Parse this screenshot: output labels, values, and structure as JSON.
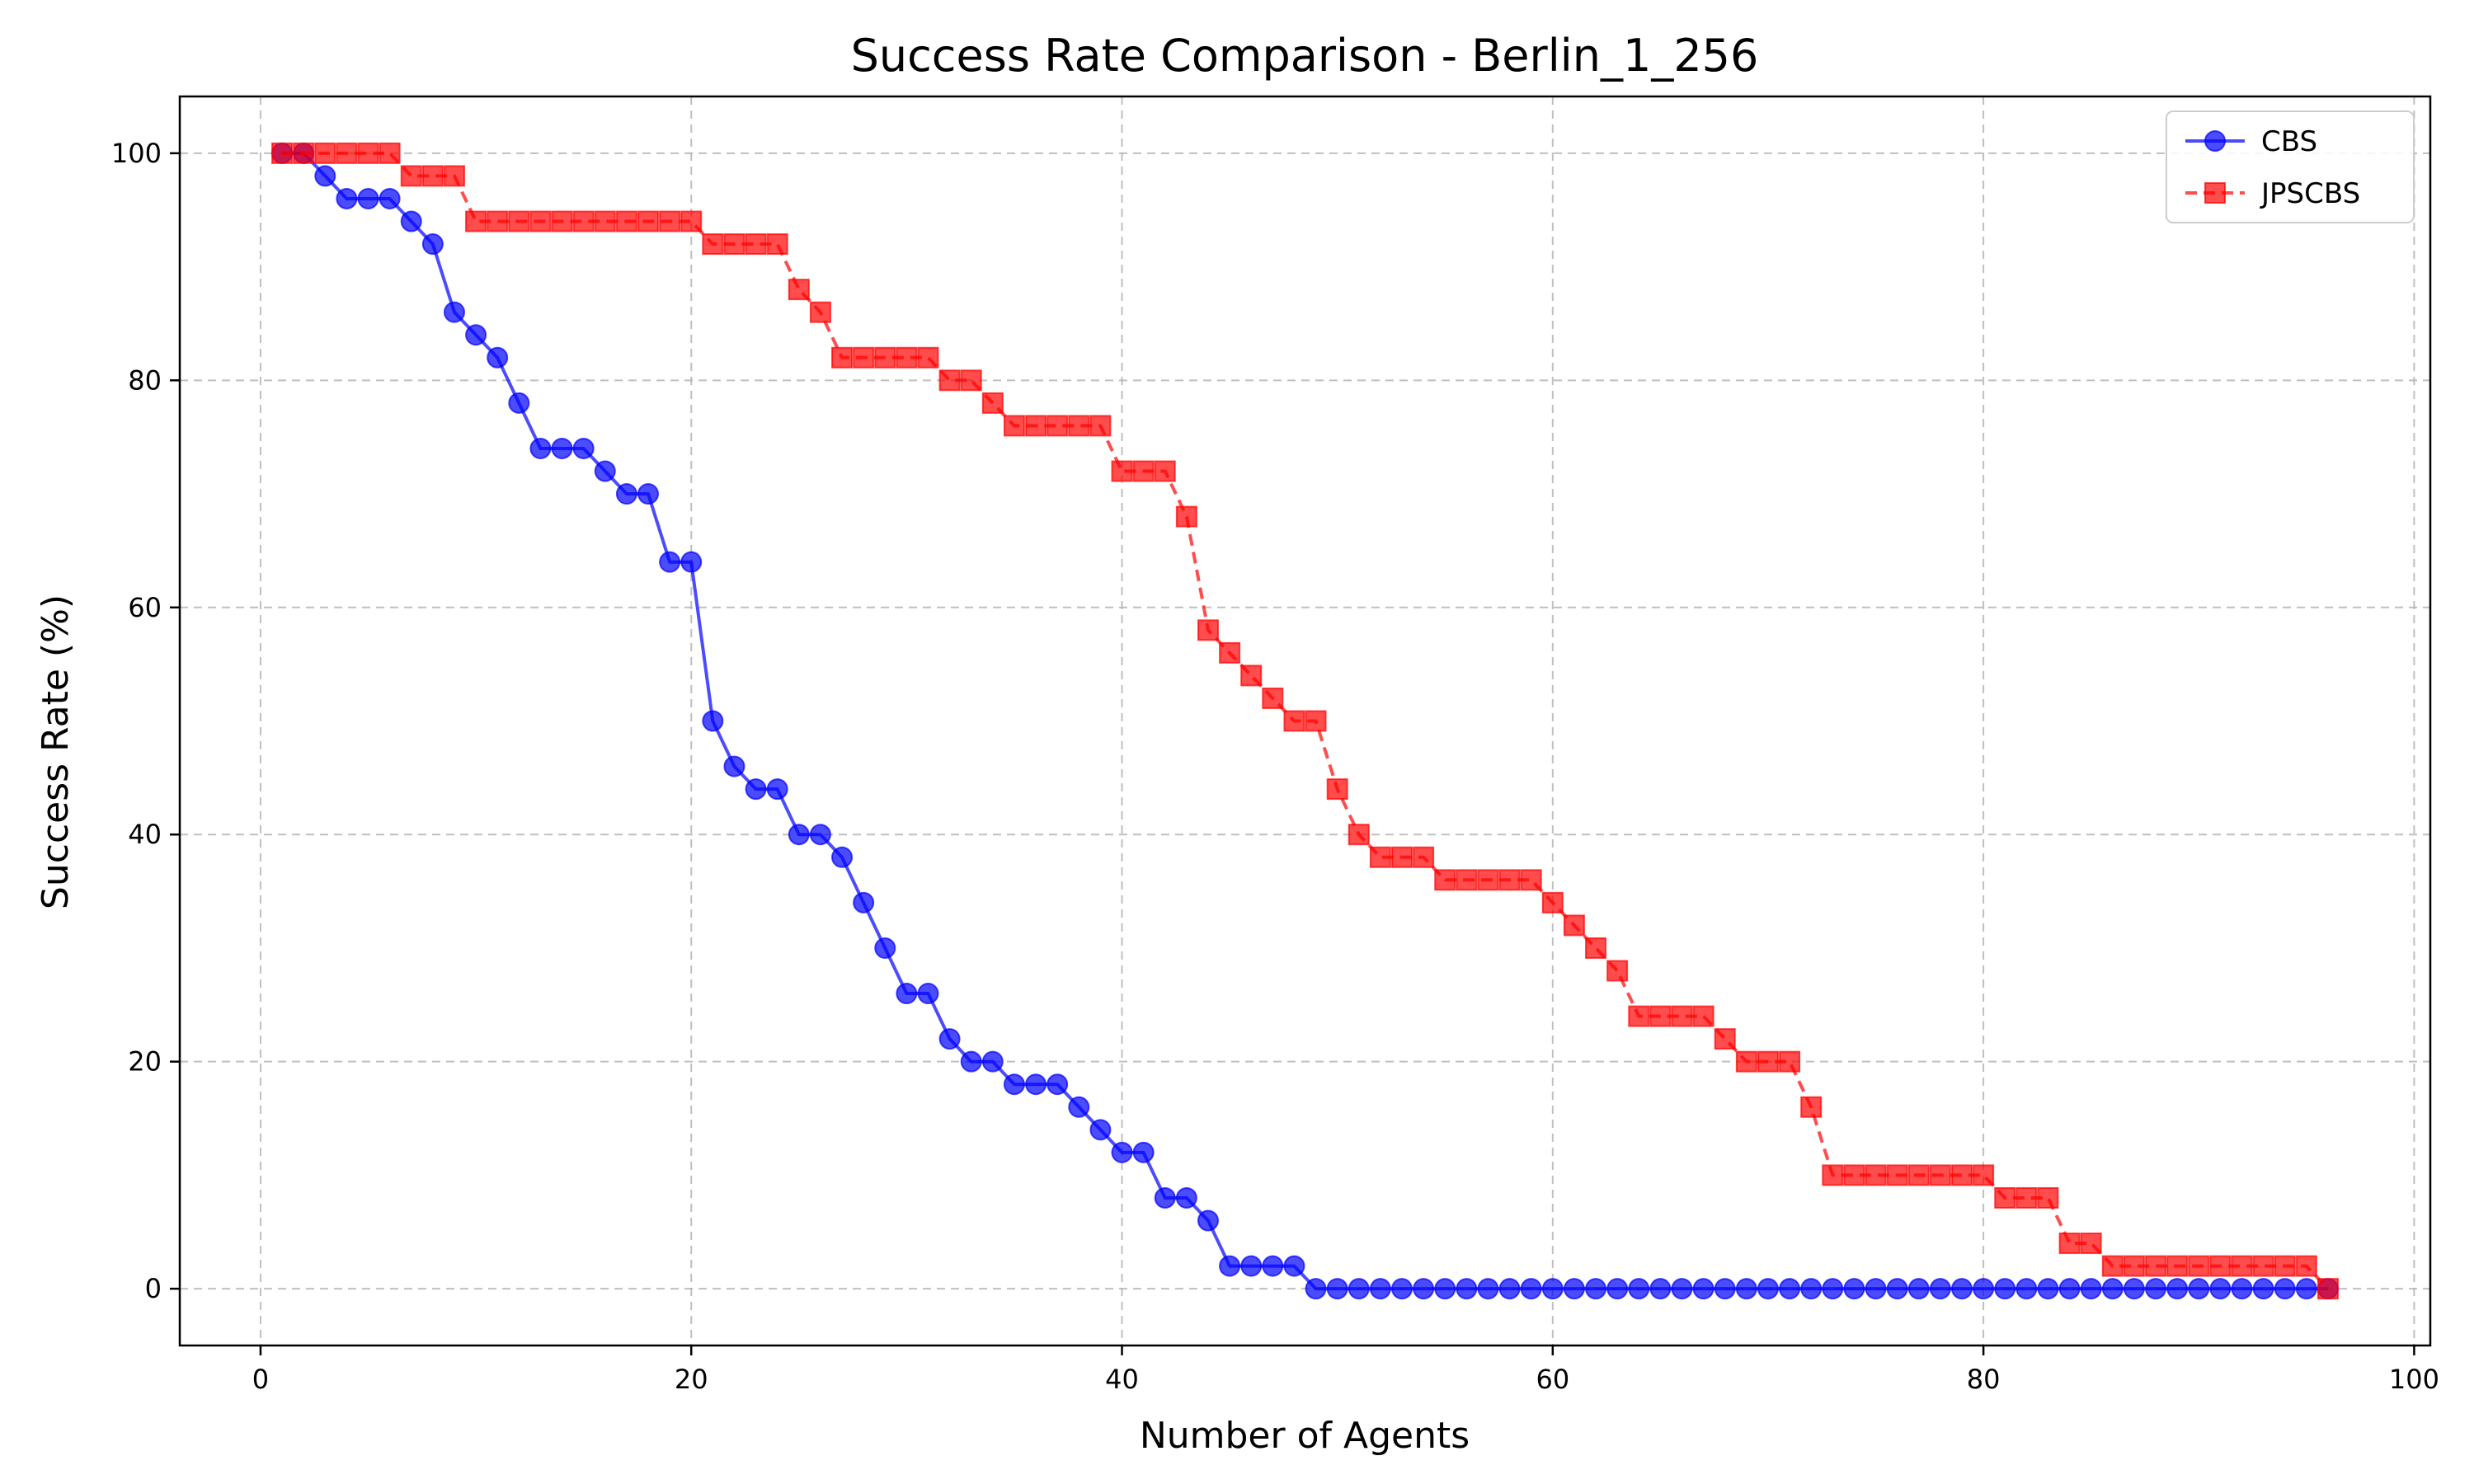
{
  "chart_data": {
    "type": "line",
    "title": "Success Rate Comparison - Berlin_1_256",
    "xlabel": "Number of Agents",
    "ylabel": "Success Rate (%)",
    "xlim": [
      -3.75,
      100.75
    ],
    "ylim": [
      -5,
      105
    ],
    "xticks": [
      0,
      20,
      40,
      60,
      80,
      100
    ],
    "yticks": [
      0,
      20,
      40,
      60,
      80,
      100
    ],
    "grid": true,
    "legend_position": "top-right",
    "x": [
      1,
      2,
      3,
      4,
      5,
      6,
      7,
      8,
      9,
      10,
      11,
      12,
      13,
      14,
      15,
      16,
      17,
      18,
      19,
      20,
      21,
      22,
      23,
      24,
      25,
      26,
      27,
      28,
      29,
      30,
      31,
      32,
      33,
      34,
      35,
      36,
      37,
      38,
      39,
      40,
      41,
      42,
      43,
      44,
      45,
      46,
      47,
      48,
      49,
      50,
      51,
      52,
      53,
      54,
      55,
      56,
      57,
      58,
      59,
      60,
      61,
      62,
      63,
      64,
      65,
      66,
      67,
      68,
      69,
      70,
      71,
      72,
      73,
      74,
      75,
      76,
      77,
      78,
      79,
      80,
      81,
      82,
      83,
      84,
      85,
      86,
      87,
      88,
      89,
      90,
      91,
      92,
      93,
      94,
      95,
      96
    ],
    "series": [
      {
        "name": "CBS",
        "color": "#0000ff",
        "marker": "circle",
        "linestyle": "solid",
        "values": [
          100,
          100,
          98,
          96,
          96,
          96,
          94,
          92,
          86,
          84,
          82,
          78,
          74,
          74,
          74,
          72,
          70,
          70,
          64,
          64,
          50,
          46,
          44,
          44,
          40,
          40,
          38,
          34,
          30,
          26,
          26,
          22,
          20,
          20,
          18,
          18,
          18,
          16,
          14,
          12,
          12,
          8,
          8,
          6,
          2,
          2,
          2,
          2,
          0,
          0,
          0,
          0,
          0,
          0,
          0,
          0,
          0,
          0,
          0,
          0,
          0,
          0,
          0,
          0,
          0,
          0,
          0,
          0,
          0,
          0,
          0,
          0,
          0,
          0,
          0,
          0,
          0,
          0,
          0,
          0,
          0,
          0,
          0,
          0,
          0,
          0,
          0,
          0,
          0,
          0,
          0,
          0,
          0,
          0,
          0,
          0
        ]
      },
      {
        "name": "JPSCBS",
        "color": "#ff0000",
        "marker": "square",
        "linestyle": "dashed",
        "values": [
          100,
          100,
          100,
          100,
          100,
          100,
          98,
          98,
          98,
          94,
          94,
          94,
          94,
          94,
          94,
          94,
          94,
          94,
          94,
          94,
          92,
          92,
          92,
          92,
          88,
          86,
          82,
          82,
          82,
          82,
          82,
          80,
          80,
          78,
          76,
          76,
          76,
          76,
          76,
          72,
          72,
          72,
          68,
          58,
          56,
          54,
          52,
          50,
          50,
          44,
          40,
          38,
          38,
          38,
          36,
          36,
          36,
          36,
          36,
          34,
          32,
          30,
          28,
          24,
          24,
          24,
          24,
          22,
          20,
          20,
          20,
          16,
          10,
          10,
          10,
          10,
          10,
          10,
          10,
          10,
          8,
          8,
          8,
          4,
          4,
          2,
          2,
          2,
          2,
          2,
          2,
          2,
          2,
          2,
          2,
          0
        ]
      }
    ]
  }
}
